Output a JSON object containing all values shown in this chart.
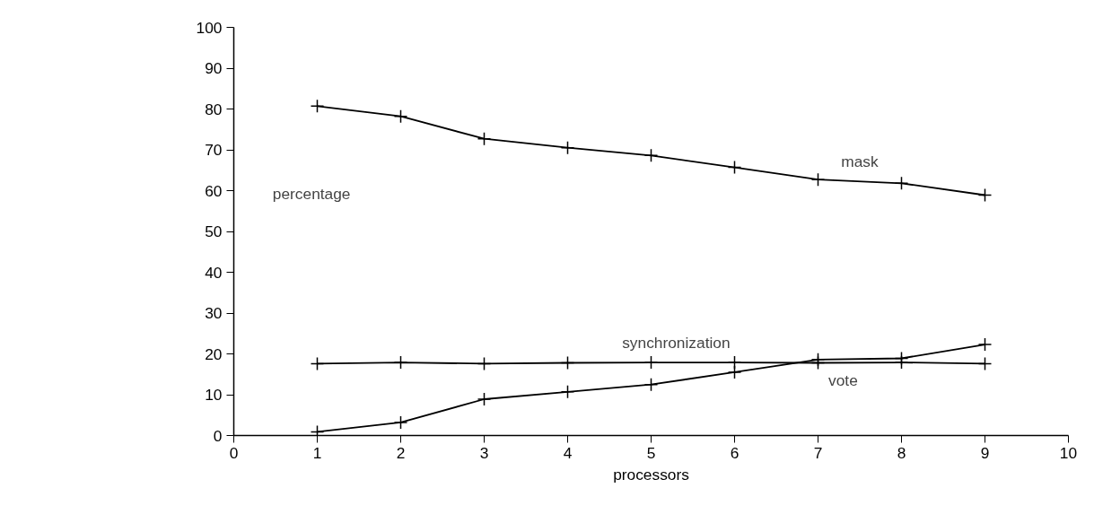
{
  "chart_data": {
    "type": "line",
    "xlabel": "processors",
    "ylabel": "percentage",
    "x": [
      1,
      2,
      3,
      4,
      5,
      6,
      7,
      8,
      9
    ],
    "series": [
      {
        "name": "mask",
        "color": "#000000",
        "values": [
          80.7,
          78.2,
          72.7,
          70.5,
          68.6,
          65.7,
          62.7,
          61.8,
          58.9
        ]
      },
      {
        "name": "synchronization",
        "color": "#000000",
        "values": [
          17.6,
          17.9,
          17.6,
          17.8,
          17.9,
          17.9,
          17.8,
          17.9,
          17.6
        ]
      },
      {
        "name": "vote",
        "color": "#000000",
        "values": [
          0.9,
          3.2,
          8.9,
          10.7,
          12.5,
          15.5,
          18.6,
          18.9,
          22.3
        ]
      }
    ],
    "xlim": [
      0,
      10
    ],
    "xticks": [
      0,
      1,
      2,
      3,
      4,
      5,
      6,
      7,
      8,
      9,
      10
    ],
    "ylim": [
      0,
      100
    ],
    "yticks": [
      0,
      10,
      20,
      30,
      40,
      50,
      60,
      70,
      80,
      90,
      100
    ],
    "marker": "cross",
    "line_style": "solid",
    "grid": false
  }
}
